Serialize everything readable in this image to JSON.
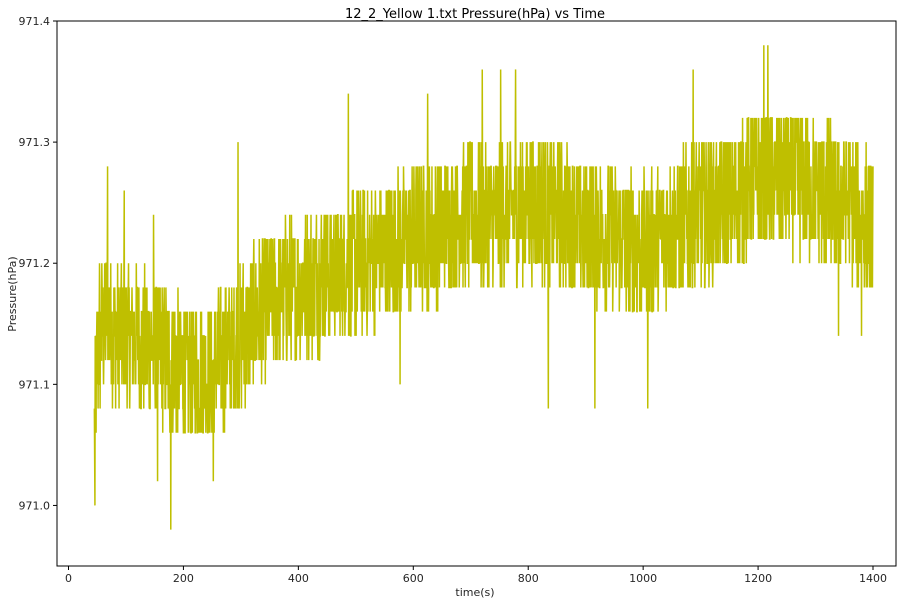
{
  "chart_data": {
    "type": "line",
    "title": "12_2_Yellow 1.txt  Pressure(hPa) vs Time",
    "xlabel": "time(s)",
    "ylabel": "Pressure(hPa)",
    "xlim": [
      -20,
      1440
    ],
    "ylim": [
      970.95,
      971.4
    ],
    "xticks": [
      0,
      200,
      400,
      600,
      800,
      1000,
      1200,
      1400
    ],
    "xtick_labels": [
      "0",
      "200",
      "400",
      "600",
      "800",
      "1000",
      "1200",
      "1400"
    ],
    "yticks": [
      971.0,
      971.1,
      971.2,
      971.3,
      971.4
    ],
    "ytick_labels": [
      "971.0",
      "971.1",
      "971.2",
      "971.3",
      "971.4"
    ],
    "grid": false,
    "series": [
      {
        "color": "#bfbf00",
        "x_start": 45,
        "x_end": 1400,
        "resolution": 0.02,
        "sampling_interval_s": 0.5,
        "trend_anchors": {
          "x": [
            45,
            50,
            60,
            70,
            80,
            100,
            150,
            200,
            250,
            300,
            350,
            400,
            450,
            500,
            550,
            600,
            650,
            700,
            750,
            800,
            850,
            900,
            950,
            1000,
            1050,
            1100,
            1150,
            1200,
            1250,
            1300,
            1350,
            1400
          ],
          "y": [
            971.06,
            971.12,
            971.15,
            971.16,
            971.14,
            971.14,
            971.13,
            971.11,
            971.11,
            971.14,
            971.17,
            971.18,
            971.19,
            971.2,
            971.21,
            971.22,
            971.23,
            971.24,
            971.24,
            971.25,
            971.24,
            971.23,
            971.22,
            971.21,
            971.23,
            971.24,
            971.25,
            971.27,
            971.27,
            971.26,
            971.25,
            971.23
          ]
        },
        "noise_amplitude": 0.06,
        "y_min_clip": 970.97,
        "y_max_clip": 971.38,
        "extremes": [
          {
            "x": 46,
            "y": 970.99
          },
          {
            "x": 54,
            "y": 971.2
          },
          {
            "x": 68,
            "y": 971.28
          },
          {
            "x": 97,
            "y": 971.26
          },
          {
            "x": 148,
            "y": 971.24
          },
          {
            "x": 155,
            "y": 971.01
          },
          {
            "x": 178,
            "y": 970.97
          },
          {
            "x": 252,
            "y": 971.01
          },
          {
            "x": 295,
            "y": 971.3
          },
          {
            "x": 487,
            "y": 971.34
          },
          {
            "x": 577,
            "y": 971.09
          },
          {
            "x": 625,
            "y": 971.34
          },
          {
            "x": 720,
            "y": 971.36
          },
          {
            "x": 752,
            "y": 971.36
          },
          {
            "x": 778,
            "y": 971.36
          },
          {
            "x": 835,
            "y": 971.08
          },
          {
            "x": 916,
            "y": 971.08
          },
          {
            "x": 1008,
            "y": 971.07
          },
          {
            "x": 1087,
            "y": 971.36
          },
          {
            "x": 1210,
            "y": 971.38
          },
          {
            "x": 1217,
            "y": 971.38
          },
          {
            "x": 1340,
            "y": 971.13
          },
          {
            "x": 1380,
            "y": 971.13
          }
        ]
      }
    ]
  }
}
